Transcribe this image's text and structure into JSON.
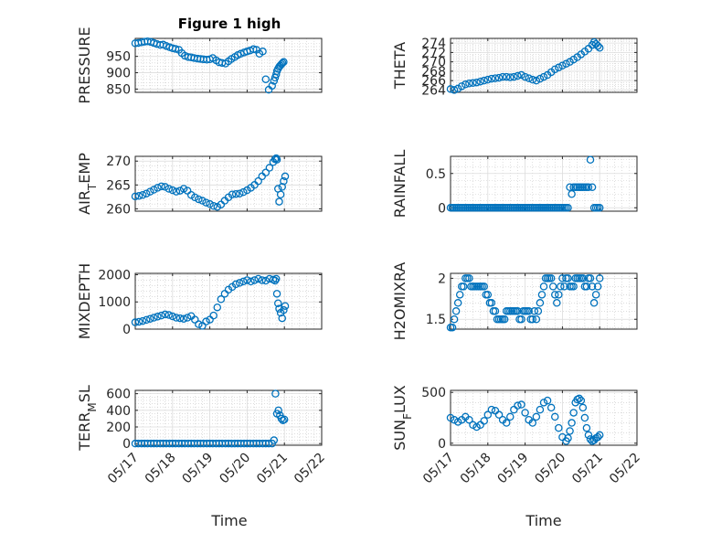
{
  "figure": {
    "title": "Figure 1 high",
    "x_tick_labels": [
      "05/17",
      "05/18",
      "05/19",
      "05/20",
      "05/21",
      "05/22"
    ],
    "xlabel": "Time"
  },
  "chart_data": [
    {
      "type": "scatter",
      "ylabel": "PRESSURE",
      "xlabel": "",
      "grid": true,
      "x_tick_labels": [
        "05/17",
        "05/18",
        "05/19",
        "05/20",
        "05/21",
        "05/22"
      ],
      "y_ticks": [
        850,
        900,
        950
      ],
      "ylim": [
        840,
        1005
      ],
      "marker_color": "#0072BD",
      "x": [
        0.0,
        0.08,
        0.17,
        0.25,
        0.33,
        0.42,
        0.5,
        0.58,
        0.67,
        0.75,
        0.83,
        0.92,
        1.0,
        1.08,
        1.17,
        1.25,
        1.33,
        1.42,
        1.5,
        1.58,
        1.67,
        1.75,
        1.83,
        1.92,
        2.0,
        2.08,
        2.17,
        2.25,
        2.33,
        2.42,
        2.5,
        2.58,
        2.67,
        2.75,
        2.83,
        2.92,
        3.0,
        3.08,
        3.17,
        3.25,
        3.33,
        3.42,
        3.5,
        3.58,
        3.67,
        3.72,
        3.75,
        3.78,
        3.8,
        3.83,
        3.86,
        3.89,
        3.92,
        3.95,
        3.98
      ],
      "y": [
        990,
        991,
        993,
        995,
        996,
        994,
        991,
        988,
        985,
        986,
        982,
        978,
        975,
        973,
        970,
        960,
        952,
        948,
        947,
        945,
        943,
        942,
        941,
        940,
        941,
        945,
        938,
        932,
        930,
        928,
        935,
        942,
        948,
        954,
        958,
        962,
        965,
        968,
        972,
        970,
        958,
        965,
        880,
        848,
        860,
        875,
        885,
        895,
        905,
        912,
        918,
        922,
        926,
        930,
        933
      ]
    },
    {
      "type": "scatter",
      "ylabel": "THETA",
      "xlabel": "",
      "grid": true,
      "x_tick_labels": [
        "05/17",
        "05/18",
        "05/19",
        "05/20",
        "05/21",
        "05/22"
      ],
      "y_ticks": [
        264,
        266,
        268,
        270,
        272,
        274
      ],
      "ylim": [
        263.5,
        275
      ],
      "marker_color": "#0072BD",
      "x": [
        0.0,
        0.1,
        0.2,
        0.3,
        0.4,
        0.5,
        0.6,
        0.7,
        0.8,
        0.9,
        1.0,
        1.1,
        1.2,
        1.3,
        1.4,
        1.5,
        1.6,
        1.7,
        1.8,
        1.9,
        2.0,
        2.1,
        2.2,
        2.3,
        2.4,
        2.5,
        2.6,
        2.7,
        2.8,
        2.9,
        3.0,
        3.1,
        3.2,
        3.3,
        3.4,
        3.5,
        3.6,
        3.7,
        3.8,
        3.85,
        3.9,
        3.95,
        4.0
      ],
      "y": [
        264.2,
        264.0,
        264.3,
        264.8,
        265.2,
        265.4,
        265.5,
        265.6,
        265.8,
        266.0,
        266.2,
        266.4,
        266.5,
        266.6,
        266.8,
        266.8,
        266.7,
        266.8,
        267.0,
        267.2,
        266.8,
        266.5,
        266.2,
        266.0,
        266.4,
        266.8,
        267.2,
        267.8,
        268.4,
        268.8,
        269.2,
        269.6,
        270.0,
        270.5,
        271.0,
        271.6,
        272.2,
        272.8,
        273.6,
        274.2,
        273.8,
        273.4,
        273.0
      ]
    },
    {
      "type": "scatter",
      "ylabel": "AIR_TEMP",
      "xlabel": "",
      "grid": true,
      "x_tick_labels": [
        "05/17",
        "05/18",
        "05/19",
        "05/20",
        "05/21",
        "05/22"
      ],
      "y_ticks": [
        260,
        265,
        270
      ],
      "ylim": [
        259.5,
        271
      ],
      "marker_color": "#0072BD",
      "x": [
        0.0,
        0.1,
        0.2,
        0.3,
        0.4,
        0.5,
        0.6,
        0.7,
        0.8,
        0.9,
        1.0,
        1.1,
        1.2,
        1.3,
        1.4,
        1.5,
        1.6,
        1.7,
        1.8,
        1.9,
        2.0,
        2.1,
        2.2,
        2.3,
        2.4,
        2.5,
        2.6,
        2.7,
        2.8,
        2.9,
        3.0,
        3.1,
        3.2,
        3.3,
        3.4,
        3.5,
        3.6,
        3.7,
        3.75,
        3.78,
        3.8,
        3.83,
        3.86,
        3.9,
        3.94,
        3.98,
        4.02
      ],
      "y": [
        262.6,
        262.7,
        262.9,
        263.2,
        263.6,
        264.0,
        264.4,
        264.7,
        264.6,
        264.2,
        263.9,
        263.6,
        263.8,
        264.2,
        263.8,
        262.9,
        262.4,
        262.0,
        261.7,
        261.3,
        261.0,
        260.6,
        260.4,
        260.9,
        261.7,
        262.4,
        263.0,
        263.1,
        263.2,
        263.5,
        263.9,
        264.4,
        265.0,
        265.8,
        266.8,
        267.6,
        268.6,
        269.8,
        270.4,
        270.6,
        270.3,
        264.2,
        261.5,
        263.0,
        264.6,
        265.8,
        266.8
      ]
    },
    {
      "type": "scatter",
      "ylabel": "RAINFALL",
      "xlabel": "",
      "grid": true,
      "x_tick_labels": [
        "05/17",
        "05/18",
        "05/19",
        "05/20",
        "05/21",
        "05/22"
      ],
      "y_ticks": [
        0,
        0.5
      ],
      "y_tick_labels": [
        "0",
        "0.5"
      ],
      "ylim": [
        -0.05,
        0.75
      ],
      "marker_color": "#0072BD",
      "x": [
        0.0,
        0.05,
        0.1,
        0.15,
        0.2,
        0.25,
        0.3,
        0.35,
        0.4,
        0.45,
        0.5,
        0.55,
        0.6,
        0.65,
        0.7,
        0.75,
        0.8,
        0.85,
        0.9,
        0.95,
        1.0,
        1.05,
        1.1,
        1.15,
        1.2,
        1.25,
        1.3,
        1.35,
        1.4,
        1.45,
        1.5,
        1.55,
        1.6,
        1.65,
        1.7,
        1.75,
        1.8,
        1.85,
        1.9,
        1.95,
        2.0,
        2.05,
        2.1,
        2.15,
        2.2,
        2.25,
        2.3,
        2.35,
        2.4,
        2.45,
        2.5,
        2.55,
        2.6,
        2.65,
        2.7,
        2.75,
        2.8,
        2.85,
        2.9,
        2.95,
        3.0,
        3.05,
        3.1,
        3.15,
        3.2,
        3.25,
        3.3,
        3.35,
        3.4,
        3.45,
        3.5,
        3.55,
        3.6,
        3.65,
        3.7,
        3.75,
        3.8,
        3.85,
        3.9,
        3.95,
        4.0
      ],
      "y": [
        0,
        0,
        0,
        0,
        0,
        0,
        0,
        0,
        0,
        0,
        0,
        0,
        0,
        0,
        0,
        0,
        0,
        0,
        0,
        0,
        0,
        0,
        0,
        0,
        0,
        0,
        0,
        0,
        0,
        0,
        0,
        0,
        0,
        0,
        0,
        0,
        0,
        0,
        0,
        0,
        0,
        0,
        0,
        0,
        0,
        0,
        0,
        0,
        0,
        0,
        0,
        0,
        0,
        0,
        0,
        0,
        0,
        0,
        0,
        0,
        0,
        0,
        0,
        0,
        0.3,
        0.2,
        0.3,
        0.3,
        0.3,
        0.3,
        0.3,
        0.3,
        0.3,
        0.3,
        0.3,
        0.7,
        0.3,
        0,
        0,
        0,
        0
      ]
    },
    {
      "type": "scatter",
      "ylabel": "MIXDEPTH",
      "xlabel": "",
      "grid": true,
      "x_tick_labels": [
        "05/17",
        "05/18",
        "05/19",
        "05/20",
        "05/21",
        "05/22"
      ],
      "y_ticks": [
        0,
        1000,
        2000
      ],
      "ylim": [
        0,
        2050
      ],
      "marker_color": "#0072BD",
      "x": [
        0.0,
        0.1,
        0.2,
        0.3,
        0.4,
        0.5,
        0.6,
        0.7,
        0.8,
        0.9,
        1.0,
        1.1,
        1.2,
        1.3,
        1.4,
        1.5,
        1.6,
        1.7,
        1.8,
        1.9,
        2.0,
        2.1,
        2.2,
        2.3,
        2.4,
        2.5,
        2.6,
        2.7,
        2.8,
        2.9,
        3.0,
        3.1,
        3.2,
        3.3,
        3.4,
        3.5,
        3.6,
        3.7,
        3.75,
        3.78,
        3.8,
        3.83,
        3.86,
        3.9,
        3.94,
        3.98,
        4.02
      ],
      "y": [
        250,
        270,
        300,
        340,
        380,
        420,
        460,
        500,
        540,
        520,
        470,
        420,
        400,
        380,
        420,
        480,
        350,
        180,
        120,
        280,
        350,
        500,
        800,
        1100,
        1300,
        1450,
        1550,
        1650,
        1700,
        1750,
        1800,
        1750,
        1800,
        1850,
        1800,
        1780,
        1850,
        1820,
        1780,
        1850,
        1300,
        950,
        750,
        600,
        400,
        700,
        850
      ]
    },
    {
      "type": "scatter",
      "ylabel": "H2OMIXRA",
      "xlabel": "",
      "grid": true,
      "x_tick_labels": [
        "05/17",
        "05/18",
        "05/19",
        "05/20",
        "05/21",
        "05/22"
      ],
      "y_ticks": [
        1.5,
        2
      ],
      "y_tick_labels": [
        "1.5",
        "2"
      ],
      "ylim": [
        1.38,
        2.06
      ],
      "marker_color": "#0072BD",
      "x": [
        0.0,
        0.05,
        0.1,
        0.15,
        0.2,
        0.25,
        0.3,
        0.35,
        0.4,
        0.45,
        0.5,
        0.55,
        0.6,
        0.65,
        0.7,
        0.75,
        0.8,
        0.85,
        0.9,
        0.95,
        1.0,
        1.05,
        1.1,
        1.15,
        1.2,
        1.25,
        1.3,
        1.35,
        1.4,
        1.45,
        1.5,
        1.55,
        1.6,
        1.65,
        1.7,
        1.75,
        1.8,
        1.85,
        1.9,
        1.95,
        2.0,
        2.05,
        2.1,
        2.15,
        2.2,
        2.25,
        2.3,
        2.35,
        2.4,
        2.45,
        2.5,
        2.55,
        2.6,
        2.65,
        2.7,
        2.75,
        2.8,
        2.85,
        2.9,
        2.95,
        3.0,
        3.05,
        3.1,
        3.15,
        3.2,
        3.25,
        3.3,
        3.35,
        3.4,
        3.45,
        3.5,
        3.55,
        3.6,
        3.65,
        3.7,
        3.75,
        3.8,
        3.85,
        3.9,
        3.95,
        4.0
      ],
      "y": [
        1.4,
        1.4,
        1.5,
        1.6,
        1.7,
        1.8,
        1.9,
        1.9,
        2.0,
        2.0,
        2.0,
        1.9,
        1.9,
        1.9,
        1.9,
        1.9,
        1.9,
        1.9,
        1.9,
        1.8,
        1.8,
        1.7,
        1.7,
        1.6,
        1.6,
        1.5,
        1.5,
        1.5,
        1.5,
        1.5,
        1.6,
        1.6,
        1.6,
        1.6,
        1.6,
        1.6,
        1.6,
        1.5,
        1.5,
        1.6,
        1.6,
        1.6,
        1.6,
        1.5,
        1.5,
        1.6,
        1.5,
        1.6,
        1.7,
        1.8,
        1.9,
        2.0,
        2.0,
        2.0,
        2.0,
        1.9,
        1.8,
        1.7,
        1.8,
        1.9,
        2.0,
        1.9,
        2.0,
        2.0,
        1.9,
        1.9,
        1.9,
        2.0,
        2.0,
        2.0,
        2.0,
        2.0,
        1.9,
        1.9,
        2.0,
        2.0,
        1.9,
        1.7,
        1.8,
        1.9,
        2.0
      ]
    },
    {
      "type": "scatter",
      "ylabel": "TERR_MSL",
      "xlabel": "",
      "grid": true,
      "x_tick_labels": [
        "05/17",
        "05/18",
        "05/19",
        "05/20",
        "05/21",
        "05/22"
      ],
      "y_ticks": [
        0,
        200,
        400,
        600
      ],
      "ylim": [
        -20,
        640
      ],
      "marker_color": "#0072BD",
      "x": [
        0.0,
        0.08,
        0.17,
        0.25,
        0.33,
        0.42,
        0.5,
        0.58,
        0.67,
        0.75,
        0.83,
        0.92,
        1.0,
        1.08,
        1.17,
        1.25,
        1.33,
        1.42,
        1.5,
        1.58,
        1.67,
        1.75,
        1.83,
        1.92,
        2.0,
        2.08,
        2.17,
        2.25,
        2.33,
        2.42,
        2.5,
        2.58,
        2.67,
        2.75,
        2.83,
        2.92,
        3.0,
        3.08,
        3.17,
        3.25,
        3.33,
        3.42,
        3.5,
        3.58,
        3.67,
        3.72,
        3.76,
        3.8,
        3.84,
        3.88,
        3.92,
        3.96,
        4.0
      ],
      "y": [
        0,
        0,
        0,
        0,
        0,
        0,
        0,
        0,
        0,
        0,
        0,
        0,
        0,
        0,
        0,
        0,
        0,
        0,
        0,
        0,
        0,
        0,
        0,
        0,
        0,
        0,
        0,
        0,
        0,
        0,
        0,
        0,
        0,
        0,
        0,
        0,
        0,
        0,
        0,
        0,
        0,
        0,
        0,
        0,
        0,
        40,
        600,
        360,
        400,
        340,
        300,
        280,
        290
      ]
    },
    {
      "type": "scatter",
      "ylabel": "SUN_FLUX",
      "xlabel": "",
      "grid": true,
      "x_tick_labels": [
        "05/17",
        "05/18",
        "05/19",
        "05/20",
        "05/21",
        "05/22"
      ],
      "y_ticks": [
        0,
        500
      ],
      "ylim": [
        -20,
        520
      ],
      "marker_color": "#0072BD",
      "x": [
        0.0,
        0.1,
        0.2,
        0.3,
        0.4,
        0.5,
        0.6,
        0.7,
        0.8,
        0.9,
        1.0,
        1.1,
        1.2,
        1.3,
        1.4,
        1.5,
        1.6,
        1.7,
        1.8,
        1.9,
        2.0,
        2.1,
        2.2,
        2.3,
        2.4,
        2.5,
        2.6,
        2.7,
        2.8,
        2.9,
        3.0,
        3.1,
        3.15,
        3.2,
        3.25,
        3.3,
        3.35,
        3.4,
        3.45,
        3.5,
        3.55,
        3.6,
        3.65,
        3.7,
        3.75,
        3.8,
        3.85,
        3.9,
        3.95,
        4.0
      ],
      "y": [
        250,
        230,
        210,
        230,
        260,
        230,
        180,
        160,
        180,
        220,
        280,
        330,
        320,
        280,
        230,
        200,
        260,
        330,
        370,
        380,
        300,
        230,
        200,
        260,
        330,
        400,
        420,
        350,
        260,
        150,
        60,
        20,
        50,
        120,
        200,
        300,
        400,
        430,
        440,
        420,
        350,
        250,
        150,
        80,
        40,
        20,
        30,
        50,
        60,
        80
      ]
    }
  ]
}
